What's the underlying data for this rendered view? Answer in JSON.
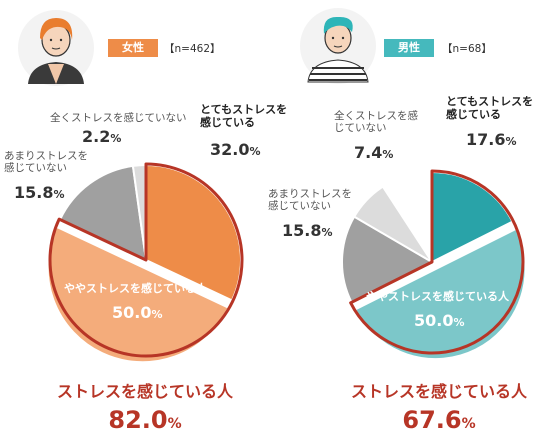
{
  "chart_data": [
    {
      "type": "pie",
      "group": "女性",
      "n_label": "【n=462】",
      "slices": [
        {
          "label": "とてもストレスを感じている",
          "value": 32.0,
          "color": "#ee8c48"
        },
        {
          "label": "ややストレスを感じている人",
          "value": 50.0,
          "color": "#f4ac7b"
        },
        {
          "label": "あまりストレスを感じていない",
          "value": 15.8,
          "color": "#a0a0a0"
        },
        {
          "label": "全くストレスを感じていない",
          "value": 2.2,
          "color": "#dcdcdc"
        }
      ],
      "summary_label": "ストレスを感じている人",
      "summary_value": "82.0",
      "badge_color": "#ee8c48"
    },
    {
      "type": "pie",
      "group": "男性",
      "n_label": "【n=68】",
      "slices": [
        {
          "label": "とてもストレスを感じている",
          "value": 17.6,
          "color": "#29a3a8"
        },
        {
          "label": "ややストレスを感じている人",
          "value": 50.0,
          "color": "#7cc7c9"
        },
        {
          "label": "あまりストレスを感じていない",
          "value": 15.8,
          "color": "#a0a0a0"
        },
        {
          "label": "全くストレスを感じていない",
          "value": 7.4,
          "color": "#dcdcdc"
        }
      ],
      "summary_label": "ストレスを感じている人",
      "summary_value": "67.6",
      "badge_color": "#45b9bd"
    }
  ],
  "unit": "%",
  "colors": {
    "outline": "#b73526",
    "summary_text": "#b73526"
  }
}
